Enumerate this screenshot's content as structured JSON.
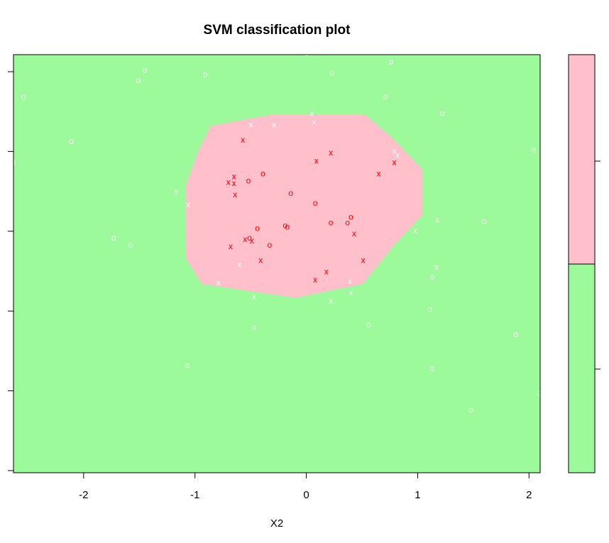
{
  "chart_data": {
    "type": "scatter",
    "title": "SVM classification plot",
    "xlabel": "X2",
    "ylabel": "",
    "xlim": [
      -2.63,
      2.1
    ],
    "ylim": [
      -1.72,
      1.27
    ],
    "x_ticks": [
      "-2",
      "-1",
      "0",
      "1",
      "2"
    ],
    "y_ticks": [
      "",
      "",
      "",
      "",
      "",
      ""
    ],
    "grid": false,
    "colors": {
      "background_class": "#9CFA9A",
      "region_class": "#FFBFCB",
      "support_vector": "#FF0000",
      "data_point": "#FFFFFF"
    },
    "decision_region": {
      "polygon": [
        [
          -0.86,
          0.76
        ],
        [
          -0.32,
          0.84
        ],
        [
          0.53,
          0.84
        ],
        [
          0.79,
          0.66
        ],
        [
          1.04,
          0.45
        ],
        [
          1.04,
          0.12
        ],
        [
          0.78,
          -0.1
        ],
        [
          0.51,
          -0.37
        ],
        [
          -0.1,
          -0.47
        ],
        [
          -0.94,
          -0.37
        ],
        [
          -1.08,
          -0.19
        ],
        [
          -1.08,
          0.34
        ],
        [
          -0.97,
          0.58
        ]
      ]
    },
    "legend_colors": [
      "#FFBFCB",
      "#9CFA9A"
    ],
    "series": [
      {
        "name": "o",
        "color": "#FFFFFF",
        "symbol": "o",
        "points": [
          [
            -1.45,
            1.16
          ],
          [
            -1.51,
            1.09
          ],
          [
            -0.91,
            1.13
          ],
          [
            0.0,
            1.28
          ],
          [
            0.23,
            1.14
          ],
          [
            0.76,
            1.22
          ],
          [
            -2.54,
            0.97
          ],
          [
            0.71,
            0.97
          ],
          [
            1.22,
            0.85
          ],
          [
            -2.11,
            0.65
          ],
          [
            2.04,
            0.59
          ],
          [
            1.6,
            0.08
          ],
          [
            -1.73,
            -0.04
          ],
          [
            -1.58,
            -0.09
          ],
          [
            1.13,
            -0.32
          ],
          [
            1.11,
            -0.55
          ],
          [
            0.56,
            -0.66
          ],
          [
            -0.47,
            -0.68
          ],
          [
            1.88,
            -0.73
          ],
          [
            -1.07,
            -0.95
          ],
          [
            1.13,
            -0.97
          ],
          [
            2.09,
            -1.15
          ],
          [
            1.48,
            -1.27
          ],
          [
            -2.63,
            0.5
          ]
        ]
      },
      {
        "name": "x",
        "color": "#FFFFFF",
        "symbol": "x",
        "points": [
          [
            0.05,
            0.85
          ],
          [
            -0.5,
            0.77
          ],
          [
            -0.29,
            0.77
          ],
          [
            0.07,
            0.79
          ],
          [
            0.79,
            0.58
          ],
          [
            0.82,
            0.55
          ],
          [
            -1.17,
            0.29
          ],
          [
            -1.06,
            0.2
          ],
          [
            1.18,
            0.09
          ],
          [
            0.98,
            0.01
          ],
          [
            1.17,
            -0.25
          ],
          [
            -0.6,
            -0.23
          ],
          [
            -0.79,
            -0.36
          ],
          [
            0.39,
            -0.35
          ],
          [
            -0.47,
            -0.46
          ],
          [
            0.4,
            -0.43
          ],
          [
            0.22,
            -0.49
          ]
        ]
      },
      {
        "name": "o",
        "color": "#FF0000",
        "symbol": "o",
        "points": [
          [
            -0.39,
            0.42
          ],
          [
            -0.52,
            0.37
          ],
          [
            -0.14,
            0.28
          ],
          [
            0.08,
            0.21
          ],
          [
            0.4,
            0.11
          ],
          [
            0.22,
            0.07
          ],
          [
            0.37,
            0.07
          ],
          [
            -0.19,
            0.05
          ],
          [
            -0.17,
            0.04
          ],
          [
            -0.44,
            0.03
          ],
          [
            -0.51,
            -0.04
          ],
          [
            -0.33,
            -0.09
          ]
        ]
      },
      {
        "name": "x",
        "color": "#FF0000",
        "symbol": "x",
        "points": [
          [
            -0.57,
            0.66
          ],
          [
            0.22,
            0.57
          ],
          [
            0.09,
            0.51
          ],
          [
            0.79,
            0.5
          ],
          [
            0.65,
            0.42
          ],
          [
            -0.65,
            0.4
          ],
          [
            -0.7,
            0.36
          ],
          [
            -0.65,
            0.35
          ],
          [
            -0.64,
            0.27
          ],
          [
            0.43,
            -0.01
          ],
          [
            -0.55,
            -0.05
          ],
          [
            -0.49,
            -0.06
          ],
          [
            -0.68,
            -0.1
          ],
          [
            -0.41,
            -0.2
          ],
          [
            0.51,
            -0.2
          ],
          [
            0.18,
            -0.28
          ],
          [
            0.08,
            -0.34
          ]
        ]
      }
    ]
  }
}
